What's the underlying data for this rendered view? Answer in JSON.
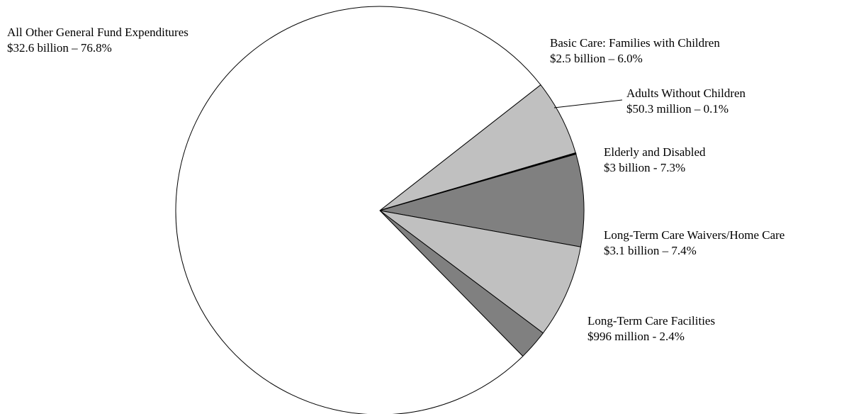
{
  "chart_data": {
    "type": "pie",
    "title": "",
    "start_angle_deg": -38,
    "direction": "clockwise",
    "slices": [
      {
        "label": "Basic Care: Families with Children",
        "amount": "$2.5 billion – 6.0%",
        "value": 6.0,
        "color": "#c0c0c0"
      },
      {
        "label": "Adults Without Children",
        "amount": "$50.3 million – 0.1%",
        "value": 0.1,
        "color": "#000000"
      },
      {
        "label": "Elderly and Disabled",
        "amount": "$3 billion - 7.3%",
        "value": 7.3,
        "color": "#808080"
      },
      {
        "label": "Long-Term Care Waivers/Home Care",
        "amount": "$3.1 billion – 7.4%",
        "value": 7.4,
        "color": "#c0c0c0"
      },
      {
        "label": "Long-Term Care Facilities",
        "amount": "$996 million - 2.4%",
        "value": 2.4,
        "color": "#808080"
      },
      {
        "label": "All Other General Fund Expenditures",
        "amount": "$32.6 billion – 76.8%",
        "value": 76.8,
        "color": "#ffffff"
      }
    ]
  }
}
